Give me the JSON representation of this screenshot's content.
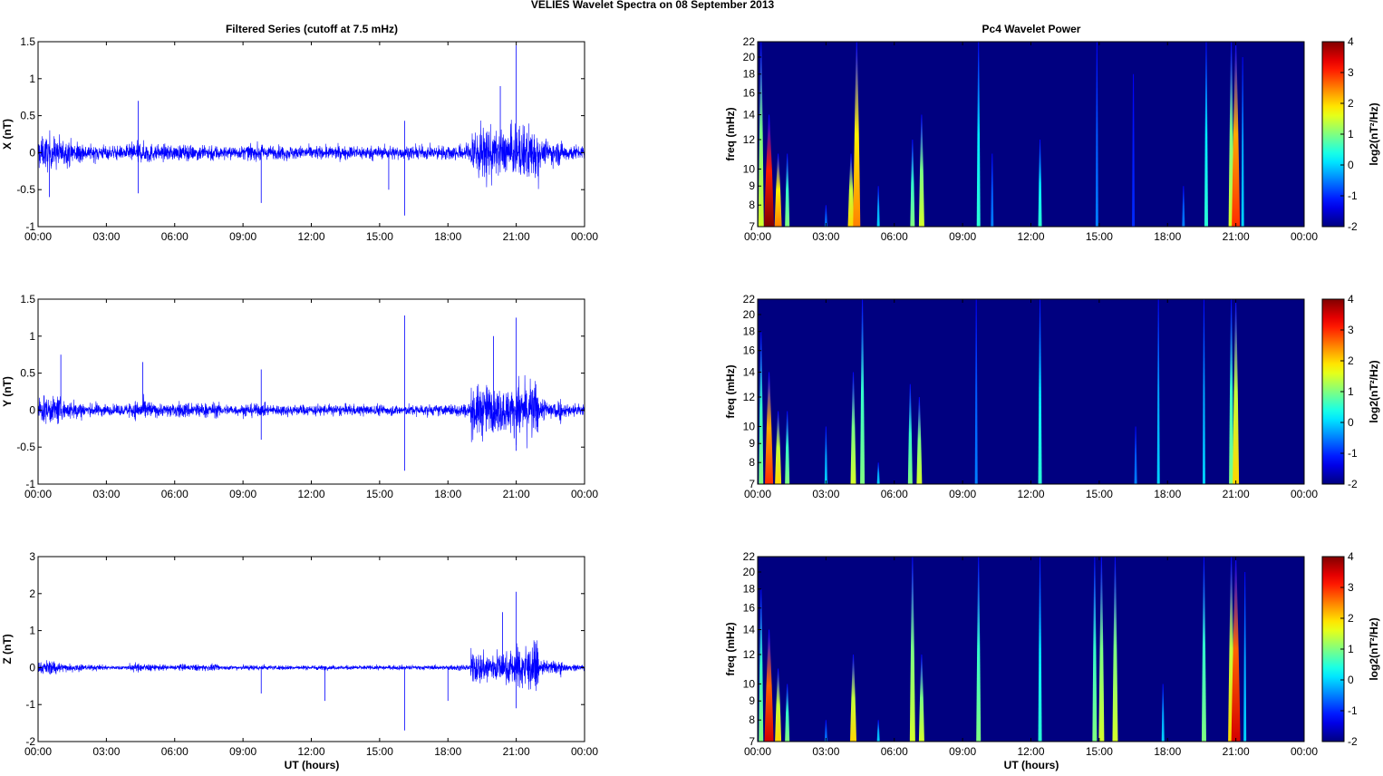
{
  "chart_data": {
    "type": "line",
    "title": "VELIES Wavelet Spectra on 08 September 2013",
    "time_ticks": [
      "00:00",
      "03:00",
      "06:00",
      "09:00",
      "12:00",
      "15:00",
      "18:00",
      "21:00",
      "00:00"
    ],
    "xlabel": "UT (hours)",
    "left_title": "Filtered Series (cutoff at 7.5 mHz)",
    "right_title": "Pc4 Wavelet Power",
    "series_panels": [
      {
        "name": "X",
        "ylabel": "X (nT)",
        "ylim": [
          -1,
          1.5
        ],
        "yticks": [
          "-1",
          "-0.5",
          "0",
          "0.5",
          "1",
          "1.5"
        ],
        "ytick_values": [
          -1,
          -0.5,
          0,
          0.5,
          1,
          1.5
        ],
        "envelope_per_hour": [
          0.3,
          0.22,
          0.14,
          0.12,
          0.2,
          0.14,
          0.14,
          0.15,
          0.12,
          0.14,
          0.12,
          0.12,
          0.12,
          0.12,
          0.12,
          0.12,
          0.12,
          0.12,
          0.15,
          0.5,
          0.4,
          0.5,
          0.22,
          0.14
        ],
        "spikes": [
          {
            "t": 0.5,
            "v": -0.6
          },
          {
            "t": 4.4,
            "v": 0.7
          },
          {
            "t": 4.4,
            "v": -0.55
          },
          {
            "t": 9.8,
            "v": -0.68
          },
          {
            "t": 15.4,
            "v": -0.5
          },
          {
            "t": 16.1,
            "v": -0.85
          },
          {
            "t": 16.1,
            "v": 0.43
          },
          {
            "t": 21.0,
            "v": 1.45
          },
          {
            "t": 20.3,
            "v": 0.9
          }
        ]
      },
      {
        "name": "Y",
        "ylabel": "Y (nT)",
        "ylim": [
          -1,
          1.5
        ],
        "yticks": [
          "-1",
          "-0.5",
          "0",
          "0.5",
          "1",
          "1.5"
        ],
        "ytick_values": [
          -1,
          -0.5,
          0,
          0.5,
          1,
          1.5
        ],
        "envelope_per_hour": [
          0.25,
          0.18,
          0.12,
          0.1,
          0.18,
          0.12,
          0.15,
          0.14,
          0.1,
          0.12,
          0.1,
          0.1,
          0.1,
          0.1,
          0.1,
          0.1,
          0.1,
          0.1,
          0.12,
          0.45,
          0.4,
          0.5,
          0.2,
          0.12
        ],
        "spikes": [
          {
            "t": 1.0,
            "v": 0.75
          },
          {
            "t": 4.6,
            "v": 0.65
          },
          {
            "t": 9.8,
            "v": 0.55
          },
          {
            "t": 9.8,
            "v": -0.4
          },
          {
            "t": 16.1,
            "v": 1.28
          },
          {
            "t": 16.1,
            "v": -0.82
          },
          {
            "t": 21.0,
            "v": 1.25
          },
          {
            "t": 20.0,
            "v": 1.0
          },
          {
            "t": 21.0,
            "v": -0.55
          }
        ]
      },
      {
        "name": "Z",
        "ylabel": "Z (nT)",
        "ylim": [
          -2,
          3
        ],
        "yticks": [
          "-2",
          "-1",
          "0",
          "1",
          "2",
          "3"
        ],
        "ytick_values": [
          -2,
          -1,
          0,
          1,
          2,
          3
        ],
        "envelope_per_hour": [
          0.25,
          0.15,
          0.1,
          0.08,
          0.15,
          0.1,
          0.12,
          0.12,
          0.08,
          0.1,
          0.08,
          0.08,
          0.08,
          0.08,
          0.08,
          0.08,
          0.08,
          0.08,
          0.1,
          0.6,
          0.6,
          0.8,
          0.25,
          0.12
        ],
        "spikes": [
          {
            "t": 9.8,
            "v": -0.7
          },
          {
            "t": 12.6,
            "v": -0.9
          },
          {
            "t": 16.1,
            "v": -1.7
          },
          {
            "t": 18.0,
            "v": -0.9
          },
          {
            "t": 21.0,
            "v": 2.05
          },
          {
            "t": 21.0,
            "v": -1.1
          },
          {
            "t": 20.4,
            "v": 1.5
          }
        ]
      }
    ],
    "spectra_panels": [
      {
        "ylabel": "freq (mHz)",
        "events": [
          {
            "t": 0.15,
            "fmax": 22,
            "p": 1.5
          },
          {
            "t": 0.5,
            "fmax": 14,
            "p": 4
          },
          {
            "t": 0.9,
            "fmax": 11,
            "p": 2.5
          },
          {
            "t": 1.3,
            "fmax": 11,
            "p": 1
          },
          {
            "t": 3.0,
            "fmax": 8,
            "p": -0.5
          },
          {
            "t": 4.1,
            "fmax": 11,
            "p": 2
          },
          {
            "t": 4.35,
            "fmax": 22,
            "p": 2.5
          },
          {
            "t": 5.3,
            "fmax": 9,
            "p": 0
          },
          {
            "t": 6.8,
            "fmax": 12,
            "p": 1
          },
          {
            "t": 7.2,
            "fmax": 14,
            "p": 1.5
          },
          {
            "t": 9.7,
            "fmax": 22,
            "p": 0.5
          },
          {
            "t": 10.3,
            "fmax": 11,
            "p": -0.5
          },
          {
            "t": 12.4,
            "fmax": 12,
            "p": 0.5
          },
          {
            "t": 14.9,
            "fmax": 22,
            "p": -0.5
          },
          {
            "t": 16.5,
            "fmax": 18,
            "p": -1
          },
          {
            "t": 18.7,
            "fmax": 9,
            "p": -0.5
          },
          {
            "t": 19.7,
            "fmax": 22,
            "p": 0.5
          },
          {
            "t": 20.8,
            "fmax": 22,
            "p": 1.5
          },
          {
            "t": 21.0,
            "fmax": 22,
            "p": 3
          },
          {
            "t": 21.3,
            "fmax": 20,
            "p": 0
          }
        ]
      },
      {
        "ylabel": "freq (mHz)",
        "events": [
          {
            "t": 0.15,
            "fmax": 18,
            "p": 1
          },
          {
            "t": 0.5,
            "fmax": 14,
            "p": 3
          },
          {
            "t": 0.9,
            "fmax": 11,
            "p": 2
          },
          {
            "t": 1.3,
            "fmax": 11,
            "p": 1
          },
          {
            "t": 3.0,
            "fmax": 10,
            "p": 0
          },
          {
            "t": 4.2,
            "fmax": 14,
            "p": 1.5
          },
          {
            "t": 4.6,
            "fmax": 22,
            "p": 1
          },
          {
            "t": 5.3,
            "fmax": 8,
            "p": 0
          },
          {
            "t": 6.7,
            "fmax": 13,
            "p": 1
          },
          {
            "t": 7.1,
            "fmax": 12,
            "p": 1.5
          },
          {
            "t": 9.6,
            "fmax": 22,
            "p": -0.5
          },
          {
            "t": 12.4,
            "fmax": 22,
            "p": 0.5
          },
          {
            "t": 16.6,
            "fmax": 10,
            "p": -0.5
          },
          {
            "t": 17.6,
            "fmax": 22,
            "p": 0
          },
          {
            "t": 19.6,
            "fmax": 22,
            "p": 0
          },
          {
            "t": 20.8,
            "fmax": 22,
            "p": 1
          },
          {
            "t": 21.0,
            "fmax": 22,
            "p": 2
          }
        ]
      },
      {
        "ylabel": "freq (mHz)",
        "events": [
          {
            "t": 0.15,
            "fmax": 18,
            "p": 1
          },
          {
            "t": 0.5,
            "fmax": 14,
            "p": 3.5
          },
          {
            "t": 0.9,
            "fmax": 11,
            "p": 2
          },
          {
            "t": 1.3,
            "fmax": 10,
            "p": 1
          },
          {
            "t": 3.0,
            "fmax": 8,
            "p": -0.5
          },
          {
            "t": 4.2,
            "fmax": 12,
            "p": 2
          },
          {
            "t": 5.3,
            "fmax": 8,
            "p": 0
          },
          {
            "t": 6.8,
            "fmax": 22,
            "p": 1.5
          },
          {
            "t": 7.2,
            "fmax": 12,
            "p": 1.5
          },
          {
            "t": 9.7,
            "fmax": 22,
            "p": 1
          },
          {
            "t": 12.4,
            "fmax": 22,
            "p": 0.5
          },
          {
            "t": 14.8,
            "fmax": 22,
            "p": 1
          },
          {
            "t": 15.1,
            "fmax": 22,
            "p": 1.5
          },
          {
            "t": 15.7,
            "fmax": 22,
            "p": 1.5
          },
          {
            "t": 17.8,
            "fmax": 10,
            "p": 0
          },
          {
            "t": 19.6,
            "fmax": 22,
            "p": 1
          },
          {
            "t": 20.8,
            "fmax": 22,
            "p": 2
          },
          {
            "t": 21.0,
            "fmax": 22,
            "p": 3.5
          },
          {
            "t": 21.4,
            "fmax": 20,
            "p": 0
          }
        ]
      }
    ],
    "freq_ticks": [
      "7",
      "8",
      "9",
      "10",
      "12",
      "14",
      "16",
      "18",
      "20",
      "22"
    ],
    "freq_tick_values": [
      7,
      8,
      9,
      10,
      12,
      14,
      16,
      18,
      20,
      22
    ],
    "freq_range": [
      7,
      22
    ],
    "colorbar": {
      "label": "log2(nT²/Hz)",
      "ticks": [
        "-2",
        "-1",
        "0",
        "1",
        "2",
        "3",
        "4"
      ],
      "range": [
        -2,
        4
      ],
      "colormap": "jet"
    },
    "line_color": "#0000ff"
  }
}
